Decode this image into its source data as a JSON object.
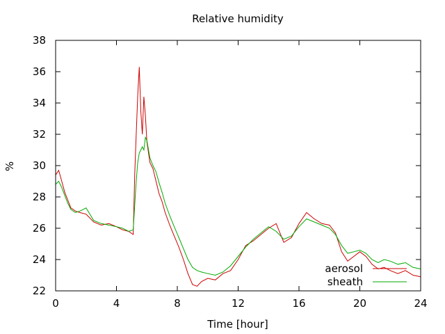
{
  "chart_data": {
    "type": "line",
    "title": "Relative humidity",
    "xlabel": "Time [hour]",
    "ylabel": "%",
    "xlim": [
      0,
      24
    ],
    "ylim": [
      22,
      38
    ],
    "xticks": [
      0,
      4,
      8,
      12,
      16,
      20,
      24
    ],
    "yticks": [
      22,
      24,
      26,
      28,
      30,
      32,
      34,
      36,
      38
    ],
    "grid": false,
    "legend_position": "bottom-right",
    "series": [
      {
        "name": "aerosol",
        "color": "#cc0000",
        "x": [
          0,
          0.2,
          0.4,
          0.6,
          0.8,
          1.0,
          1.3,
          1.6,
          2.0,
          2.5,
          3.0,
          3.5,
          4.0,
          4.4,
          4.8,
          5.1,
          5.2,
          5.3,
          5.4,
          5.5,
          5.6,
          5.7,
          5.8,
          5.9,
          6.0,
          6.2,
          6.4,
          6.6,
          6.8,
          7.0,
          7.2,
          7.5,
          7.8,
          8.1,
          8.4,
          8.7,
          9.0,
          9.3,
          9.6,
          10.0,
          10.5,
          11.0,
          11.5,
          12.0,
          12.5,
          13.0,
          13.5,
          14.0,
          14.5,
          15.0,
          15.5,
          16.0,
          16.5,
          17.0,
          17.5,
          18.0,
          18.4,
          18.8,
          19.2,
          19.6,
          20.0,
          20.4,
          20.8,
          21.2,
          21.6,
          22.0,
          22.5,
          23.0,
          23.5,
          24.0
        ],
        "values": [
          29.4,
          29.7,
          29.0,
          28.3,
          27.8,
          27.3,
          27.1,
          27.0,
          26.9,
          26.4,
          26.2,
          26.3,
          26.1,
          25.9,
          25.8,
          25.6,
          29.5,
          32.0,
          34.5,
          36.3,
          33.5,
          32.0,
          34.4,
          33.2,
          31.5,
          30.2,
          29.8,
          29.0,
          28.2,
          27.7,
          27.0,
          26.2,
          25.5,
          24.8,
          24.0,
          23.1,
          22.4,
          22.3,
          22.6,
          22.8,
          22.7,
          23.1,
          23.3,
          24.0,
          24.9,
          25.2,
          25.6,
          26.0,
          26.3,
          25.1,
          25.4,
          26.3,
          27.0,
          26.6,
          26.3,
          26.2,
          25.7,
          24.5,
          23.9,
          24.2,
          24.5,
          24.2,
          23.7,
          23.4,
          23.5,
          23.3,
          23.1,
          23.3,
          23.0,
          22.9
        ]
      },
      {
        "name": "sheath",
        "color": "#00aa00",
        "x": [
          0,
          0.2,
          0.4,
          0.6,
          0.8,
          1.0,
          1.3,
          1.6,
          2.0,
          2.5,
          3.0,
          3.5,
          4.0,
          4.4,
          4.8,
          5.1,
          5.2,
          5.3,
          5.4,
          5.5,
          5.6,
          5.7,
          5.8,
          5.9,
          6.0,
          6.2,
          6.4,
          6.6,
          6.8,
          7.0,
          7.2,
          7.5,
          7.8,
          8.1,
          8.4,
          8.7,
          9.0,
          9.3,
          9.6,
          10.0,
          10.5,
          11.0,
          11.5,
          12.0,
          12.5,
          13.0,
          13.5,
          14.0,
          14.5,
          15.0,
          15.5,
          16.0,
          16.5,
          17.0,
          17.5,
          18.0,
          18.4,
          18.8,
          19.2,
          19.6,
          20.0,
          20.4,
          20.8,
          21.2,
          21.6,
          22.0,
          22.5,
          23.0,
          23.5,
          24.0
        ],
        "values": [
          28.8,
          29.0,
          28.6,
          28.1,
          27.6,
          27.2,
          27.0,
          27.1,
          27.3,
          26.5,
          26.3,
          26.2,
          26.1,
          26.0,
          25.8,
          25.9,
          27.5,
          29.0,
          30.2,
          30.8,
          31.0,
          31.2,
          31.0,
          31.8,
          31.6,
          30.5,
          30.0,
          29.6,
          28.9,
          28.3,
          27.6,
          26.8,
          26.1,
          25.4,
          24.7,
          24.0,
          23.5,
          23.3,
          23.2,
          23.1,
          23.0,
          23.2,
          23.6,
          24.2,
          24.8,
          25.3,
          25.7,
          26.1,
          25.8,
          25.3,
          25.5,
          26.1,
          26.6,
          26.4,
          26.2,
          26.0,
          25.6,
          24.9,
          24.4,
          24.5,
          24.6,
          24.4,
          24.0,
          23.8,
          24.0,
          23.9,
          23.7,
          23.8,
          23.5,
          23.4
        ]
      }
    ]
  }
}
